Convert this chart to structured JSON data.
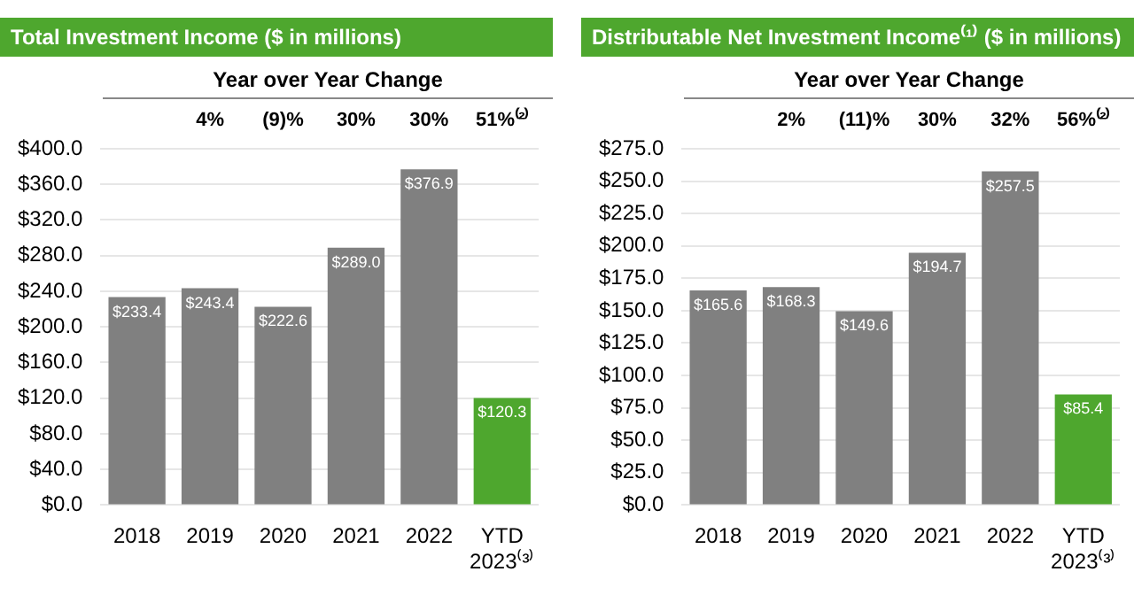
{
  "chart_data": [
    {
      "type": "bar",
      "title": "Total Investment Income ($ in millions)",
      "subtitle": "Year over Year Change",
      "categories": [
        "2018",
        "2019",
        "2020",
        "2021",
        "2022",
        "YTD 2023⁽³⁾"
      ],
      "values": [
        233.4,
        243.4,
        222.6,
        289.0,
        376.9,
        120.3
      ],
      "colors": [
        "#808080",
        "#808080",
        "#808080",
        "#808080",
        "#808080",
        "#4ea72e"
      ],
      "value_labels": [
        "$233.4",
        "$243.4",
        "$222.6",
        "$289.0",
        "$376.9",
        "$120.3"
      ],
      "annotations": [
        "4%",
        "(9)%",
        "30%",
        "30%",
        "51%⁽²⁾"
      ],
      "ylim": [
        0,
        400
      ],
      "yticks": [
        {
          "value": 0,
          "label": "$0.0"
        },
        {
          "value": 40,
          "label": "$40.0"
        },
        {
          "value": 80,
          "label": "$80.0"
        },
        {
          "value": 120,
          "label": "$120.0"
        },
        {
          "value": 160,
          "label": "$160.0"
        },
        {
          "value": 200,
          "label": "$200.0"
        },
        {
          "value": 240,
          "label": "$240.0"
        },
        {
          "value": 280,
          "label": "$280.0"
        },
        {
          "value": 320,
          "label": "$320.0"
        },
        {
          "value": 360,
          "label": "$360.0"
        },
        {
          "value": 400,
          "label": "$400.0"
        }
      ],
      "grid": "y",
      "legend": false
    },
    {
      "type": "bar",
      "title": "Distributable Net Investment Income⁽¹⁾ ($ in millions)",
      "subtitle": "Year over Year Change",
      "categories": [
        "2018",
        "2019",
        "2020",
        "2021",
        "2022",
        "YTD 2023⁽³⁾"
      ],
      "values": [
        165.6,
        168.3,
        149.6,
        194.7,
        257.5,
        85.4
      ],
      "colors": [
        "#808080",
        "#808080",
        "#808080",
        "#808080",
        "#808080",
        "#4ea72e"
      ],
      "value_labels": [
        "$165.6",
        "$168.3",
        "$149.6",
        "$194.7",
        "$257.5",
        "$85.4"
      ],
      "annotations": [
        "2%",
        "(11)%",
        "30%",
        "32%",
        "56%⁽²⁾"
      ],
      "ylim": [
        0,
        275
      ],
      "yticks": [
        {
          "value": 0,
          "label": "$0.0"
        },
        {
          "value": 25,
          "label": "$25.0"
        },
        {
          "value": 50,
          "label": "$50.0"
        },
        {
          "value": 75,
          "label": "$75.0"
        },
        {
          "value": 100,
          "label": "$100.0"
        },
        {
          "value": 125,
          "label": "$125.0"
        },
        {
          "value": 150,
          "label": "$150.0"
        },
        {
          "value": 175,
          "label": "$175.0"
        },
        {
          "value": 200,
          "label": "$200.0"
        },
        {
          "value": 225,
          "label": "$225.0"
        },
        {
          "value": 250,
          "label": "$250.0"
        },
        {
          "value": 275,
          "label": "$275.0"
        }
      ],
      "grid": "y",
      "legend": false
    }
  ]
}
